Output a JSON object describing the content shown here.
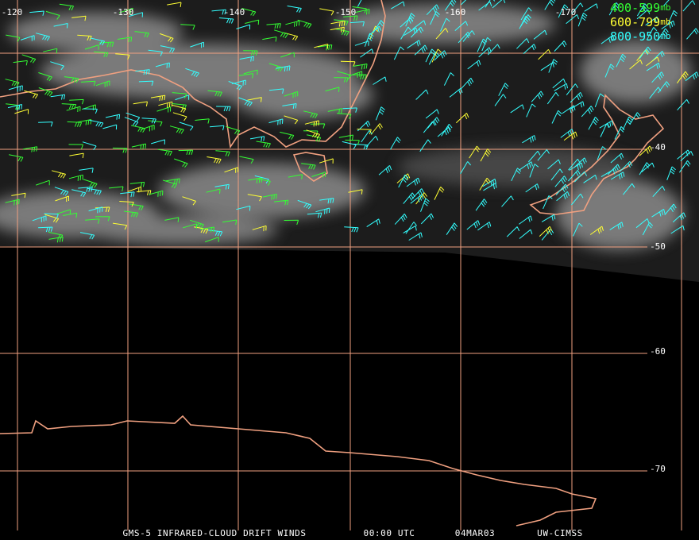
{
  "map": {
    "lon_labels": [
      "-120",
      "-130",
      "-140",
      "-150",
      "-160",
      "-170"
    ],
    "lat_labels": [
      "-40",
      "-50",
      "-60",
      "-70"
    ],
    "legend": [
      {
        "range": "400-599",
        "unit": "mb",
        "color": "#33ff33"
      },
      {
        "range": "600-799",
        "unit": "mb",
        "color": "#ffff33"
      },
      {
        "range": "800-950",
        "unit": "mb",
        "color": "#33ffff"
      }
    ],
    "footer": [
      "GMS-5 INFRARED-CLOUD DRIFT WINDS",
      "00:00 UTC",
      "04MAR03",
      "UW-CIMSS"
    ]
  }
}
